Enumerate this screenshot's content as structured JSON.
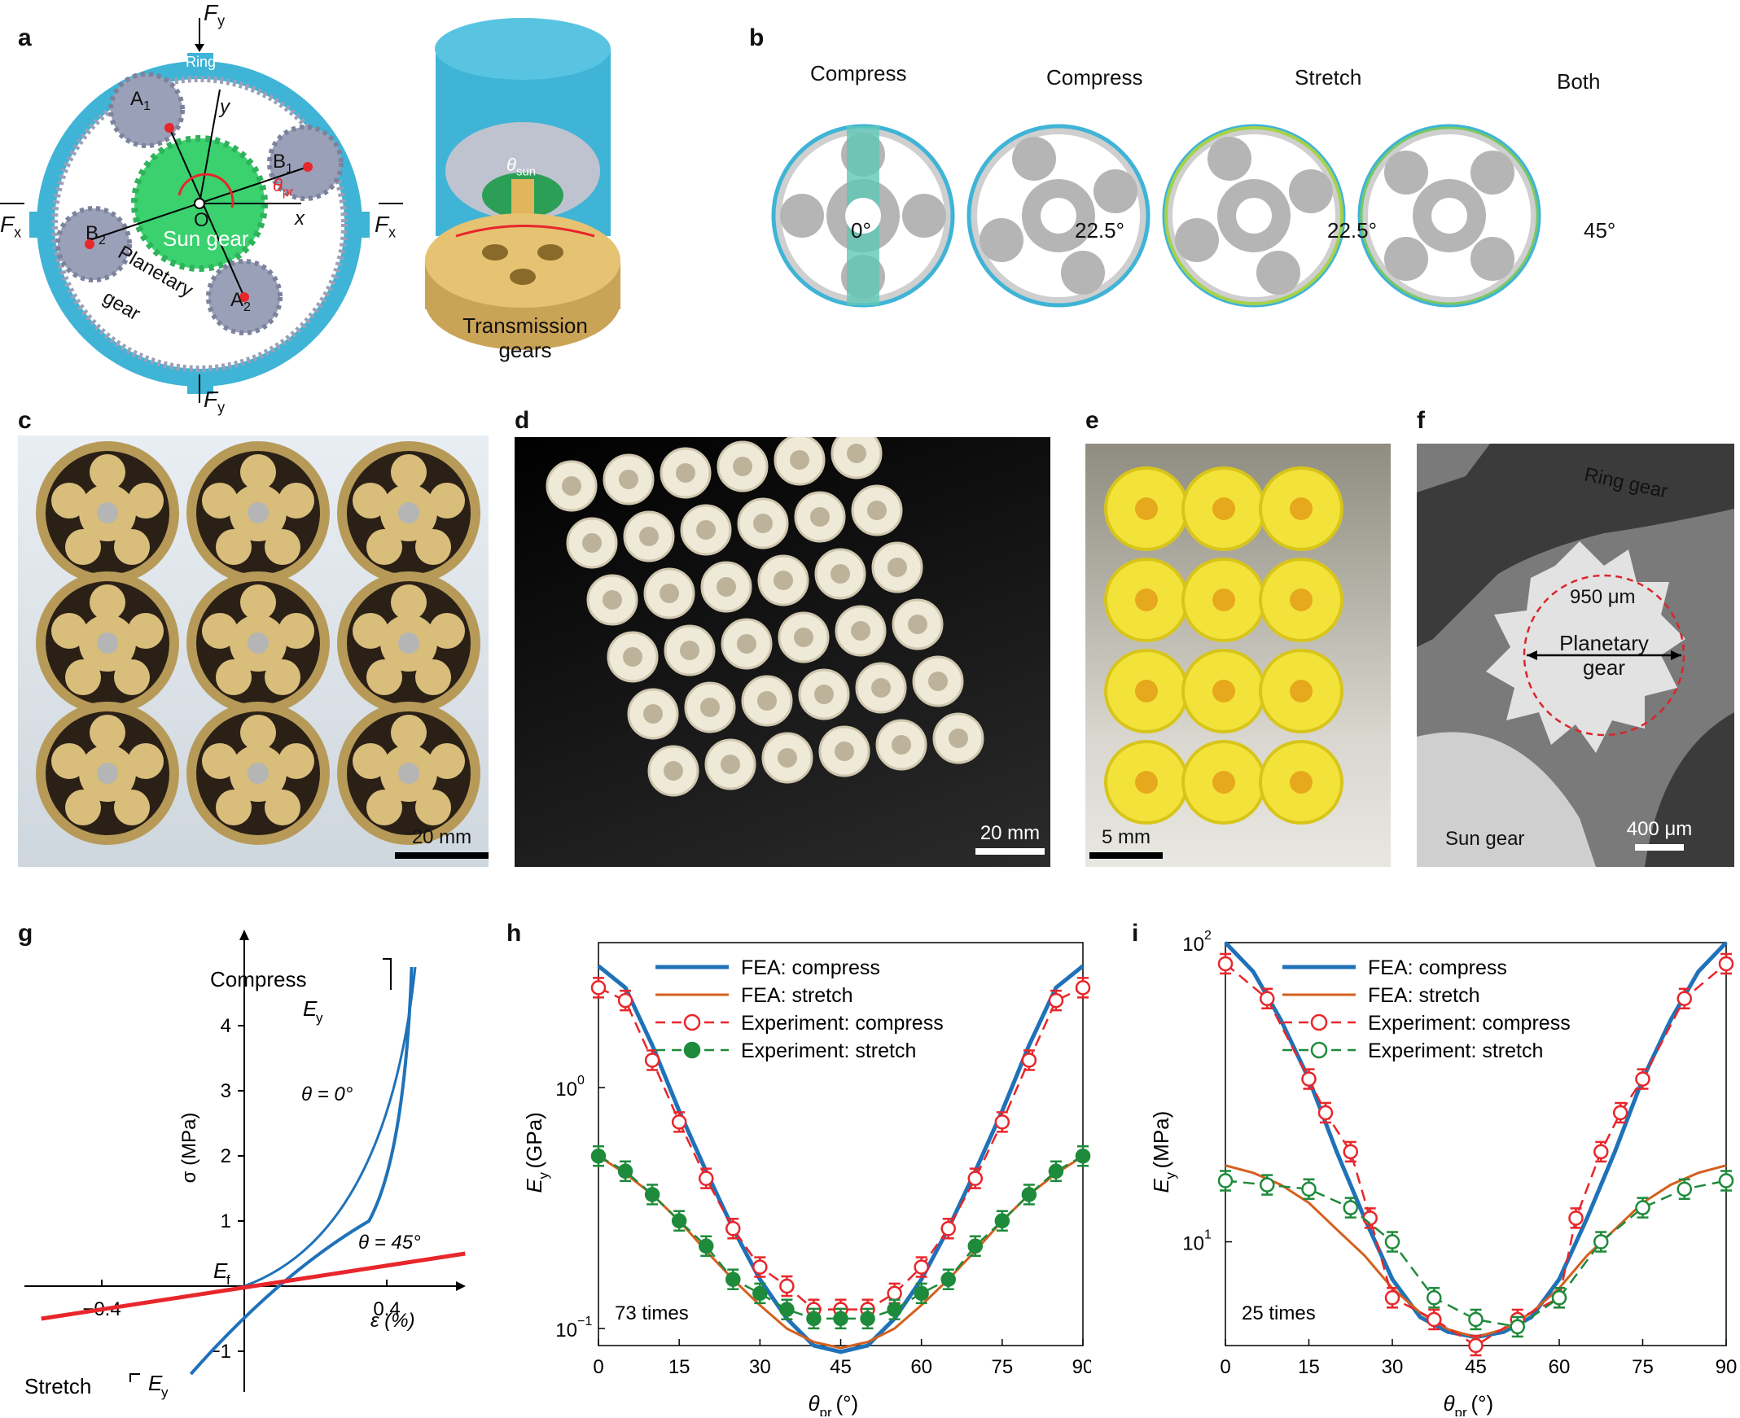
{
  "panels": {
    "a": {
      "label": "a",
      "fy_top": "F",
      "fy_sub": "y",
      "fy_bot": "F",
      "fy_bot_sub": "y",
      "fx_left": "F",
      "fx_left_sub": "x",
      "fx_right": "F",
      "fx_right_sub": "x",
      "ring": "Ring",
      "a1": "A",
      "a1_sub": "1",
      "a2": "A",
      "a2_sub": "2",
      "b1": "B",
      "b1_sub": "1",
      "b2": "B",
      "b2_sub": "2",
      "theta_pr": "θ",
      "theta_pr_sub": "pr",
      "y_axis": "y",
      "x_axis": "x",
      "origin": "O",
      "sun_gear": "Sun gear",
      "planetary": "Planetary",
      "gear": "gear",
      "theta_sun": "θ",
      "theta_sun_sub": "sun",
      "transmission_1": "Transmission",
      "transmission_2": "gears"
    },
    "b": {
      "label": "b",
      "items": [
        {
          "title": "Compress",
          "angle": "0°"
        },
        {
          "title": "Compress",
          "angle": "22.5°"
        },
        {
          "title": "Stretch",
          "angle": "22.5°"
        },
        {
          "title": "Both",
          "angle": "45°"
        }
      ]
    },
    "c": {
      "label": "c",
      "scale": "20 mm"
    },
    "d": {
      "label": "d",
      "scale": "20 mm"
    },
    "e": {
      "label": "e",
      "scale": "5 mm"
    },
    "f": {
      "label": "f",
      "ring": "Ring gear",
      "dia": "950 μm",
      "planetary_1": "Planetary",
      "planetary_2": "gear",
      "sun": "Sun gear",
      "scale": "400 μm"
    },
    "g": {
      "label": "g",
      "compress": "Compress",
      "stretch": "Stretch",
      "ey": "E",
      "ey_sub": "y",
      "theta0": "θ = 0°",
      "theta45": "θ = 45°",
      "ef": "E",
      "ef_sub": "f",
      "ylabel": "σ (MPa)",
      "xlabel": "ε (%)",
      "xticks": [
        "−0.4",
        "0.4"
      ],
      "yticks": [
        "4",
        "3",
        "2",
        "1",
        "−1"
      ]
    },
    "h": {
      "label": "h",
      "annot": "73 times",
      "xlabel": "θ",
      "xlabel_sub": "pr",
      "xlabel_unit": " (°)",
      "ylabel": "E",
      "ylabel_sub": "y",
      "ylabel_unit": " (GPa)"
    },
    "i": {
      "label": "i",
      "annot": "25 times",
      "xlabel": "θ",
      "xlabel_sub": "pr",
      "xlabel_unit": " (°)",
      "ylabel": "E",
      "ylabel_sub": "y",
      "ylabel_unit": " (MPa)"
    }
  },
  "colors": {
    "ring_blue": "#3fb4d6",
    "sun_green": "#3bd16f",
    "planet_gray": "#9aa0b8",
    "marker_red": "#e8262b",
    "fea_blue": "#1f72b8",
    "fea_orange": "#d4601e",
    "exp_green": "#1e8a3b",
    "gold": "#c9a356"
  },
  "chart_data": [
    {
      "type": "line",
      "panel": "h",
      "yscale": "log",
      "xlim": [
        0,
        90
      ],
      "ylim": [
        0.085,
        4.0
      ],
      "xticks": [
        0,
        15,
        30,
        45,
        60,
        75,
        90
      ],
      "yticks": [
        {
          "value": 1,
          "label": "10",
          "exp": "0"
        },
        {
          "value": 0.1,
          "label": "10",
          "exp": "−1"
        }
      ],
      "legend": "top",
      "series": [
        {
          "name": "FEA: compress",
          "style": "line",
          "x": [
            0,
            5,
            10,
            15,
            20,
            25,
            30,
            35,
            40,
            45,
            50,
            55,
            60,
            65,
            70,
            75,
            80,
            85,
            90
          ],
          "y": [
            3.2,
            2.6,
            1.5,
            0.8,
            0.45,
            0.26,
            0.16,
            0.11,
            0.085,
            0.08,
            0.085,
            0.11,
            0.16,
            0.26,
            0.45,
            0.8,
            1.5,
            2.6,
            3.2
          ]
        },
        {
          "name": "FEA: stretch",
          "style": "line",
          "x": [
            0,
            5,
            10,
            15,
            20,
            25,
            30,
            35,
            40,
            45,
            50,
            55,
            60,
            65,
            70,
            75,
            80,
            85,
            90
          ],
          "y": [
            0.52,
            0.44,
            0.36,
            0.28,
            0.21,
            0.16,
            0.125,
            0.1,
            0.088,
            0.083,
            0.088,
            0.1,
            0.125,
            0.16,
            0.21,
            0.28,
            0.36,
            0.44,
            0.52
          ]
        },
        {
          "name": "Experiment: compress",
          "style": "open-marker",
          "x": [
            0,
            5,
            10,
            15,
            20,
            25,
            30,
            35,
            40,
            45,
            50,
            55,
            60,
            65,
            70,
            75,
            80,
            85,
            90
          ],
          "y": [
            2.6,
            2.3,
            1.3,
            0.72,
            0.42,
            0.26,
            0.18,
            0.15,
            0.12,
            0.12,
            0.12,
            0.14,
            0.18,
            0.26,
            0.42,
            0.72,
            1.3,
            2.3,
            2.6
          ]
        },
        {
          "name": "Experiment: stretch",
          "style": "filled-marker",
          "x": [
            0,
            5,
            10,
            15,
            20,
            25,
            30,
            35,
            40,
            45,
            50,
            55,
            60,
            65,
            70,
            75,
            80,
            85,
            90
          ],
          "y": [
            0.52,
            0.45,
            0.36,
            0.28,
            0.22,
            0.16,
            0.14,
            0.12,
            0.11,
            0.11,
            0.11,
            0.12,
            0.14,
            0.16,
            0.22,
            0.28,
            0.36,
            0.45,
            0.52
          ]
        }
      ]
    },
    {
      "type": "line",
      "panel": "i",
      "yscale": "log",
      "xlim": [
        0,
        90
      ],
      "ylim": [
        4.5,
        100
      ],
      "xticks": [
        0,
        15,
        30,
        45,
        60,
        75,
        90
      ],
      "yticks": [
        {
          "value": 100,
          "label": "10",
          "exp": "2"
        },
        {
          "value": 10,
          "label": "10",
          "exp": "1"
        }
      ],
      "legend": "top",
      "series": [
        {
          "name": "FEA: compress",
          "style": "line",
          "x": [
            0,
            5,
            10,
            15,
            20,
            25,
            30,
            35,
            40,
            45,
            50,
            55,
            60,
            65,
            70,
            75,
            80,
            85,
            90
          ],
          "y": [
            100,
            80,
            55,
            35,
            20,
            12,
            7.5,
            5.6,
            5.0,
            4.8,
            5.0,
            5.6,
            7.5,
            12,
            20,
            35,
            55,
            80,
            100
          ]
        },
        {
          "name": "FEA: stretch",
          "style": "line",
          "x": [
            0,
            5,
            10,
            15,
            20,
            25,
            30,
            35,
            40,
            45,
            50,
            55,
            60,
            65,
            70,
            75,
            80,
            85,
            90
          ],
          "y": [
            18,
            17,
            15.5,
            13.5,
            11,
            9,
            7,
            5.8,
            5.1,
            4.8,
            5.1,
            5.8,
            7,
            9,
            11,
            13.5,
            15.5,
            17,
            18
          ]
        },
        {
          "name": "Experiment: compress",
          "style": "open-marker",
          "x": [
            0,
            7.5,
            15,
            18,
            22.5,
            26,
            30,
            37.5,
            45,
            52.5,
            60,
            63,
            67.5,
            71,
            75,
            82.5,
            90
          ],
          "y": [
            85,
            65,
            35,
            27,
            20,
            12,
            6.5,
            5.5,
            4.5,
            5.5,
            6.5,
            12,
            20,
            27,
            35,
            65,
            85
          ]
        },
        {
          "name": "Experiment: stretch",
          "style": "open-marker-green",
          "x": [
            0,
            7.5,
            15,
            22.5,
            30,
            37.5,
            45,
            52.5,
            60,
            67.5,
            75,
            82.5,
            90
          ],
          "y": [
            16,
            15.5,
            15,
            13,
            10,
            6.5,
            5.5,
            5.2,
            6.5,
            10,
            13,
            15,
            16
          ]
        }
      ]
    }
  ]
}
